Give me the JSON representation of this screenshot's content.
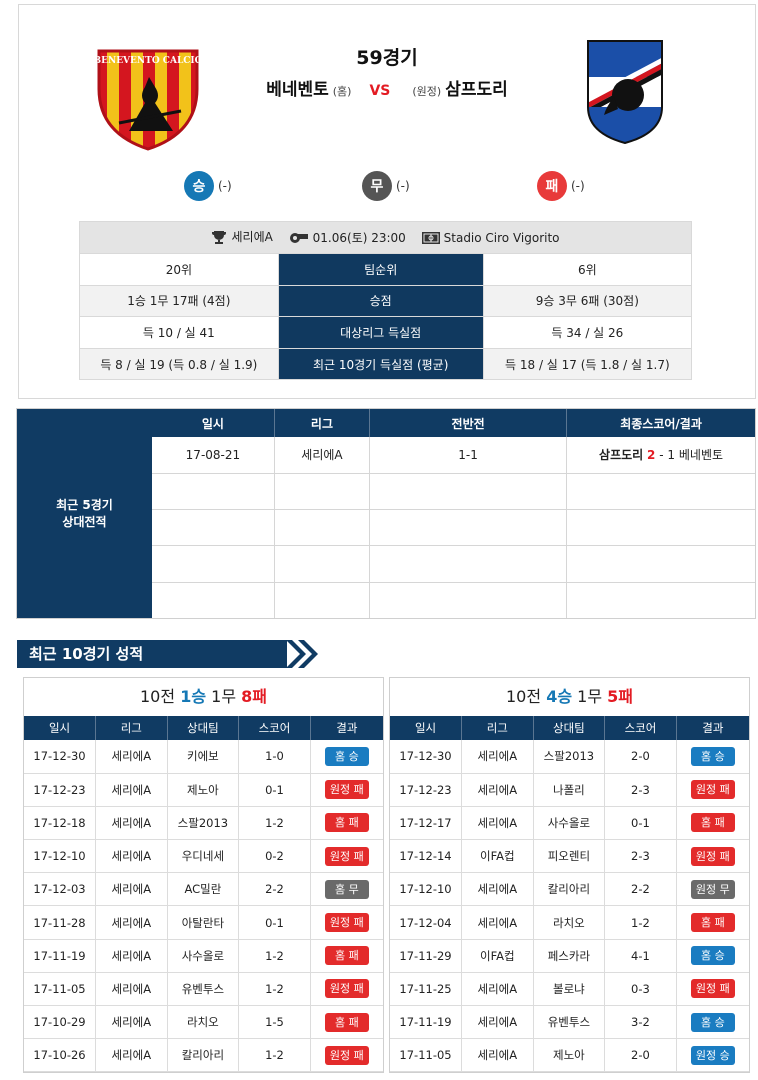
{
  "match": {
    "number": "59경기",
    "home_team": "베네벤토",
    "home_tag": "(홈)",
    "vs": "VS",
    "away_tag": "(원정)",
    "away_team": "삼프도리",
    "home_crest_text": "BENEVENTO CALCIO"
  },
  "prediction": {
    "win_label": "승",
    "win_count": "(-)",
    "draw_label": "무",
    "draw_count": "(-)",
    "loss_label": "패",
    "loss_count": "(-)"
  },
  "meta": {
    "league": "세리에A",
    "datetime": "01.06(토) 23:00",
    "stadium": "Stadio Ciro Vigorito"
  },
  "stats": [
    {
      "label": "팀순위",
      "home": "20위",
      "away": "6위"
    },
    {
      "label": "승점",
      "home": "1승 1무 17패 (4점)",
      "away": "9승 3무 6패 (30점)"
    },
    {
      "label": "대상리그 득실점",
      "home": "득 10 / 실 41",
      "away": "득 34 / 실 26"
    },
    {
      "label": "최근 10경기 득실점 (평균)",
      "home": "득 8 / 실 19 (득 0.8 / 실 1.9)",
      "away": "득 18 / 실 17 (득 1.8 / 실 1.7)"
    }
  ],
  "h2h": {
    "side_line1": "최근 5경기",
    "side_line2": "상대전적",
    "headers": [
      "일시",
      "리그",
      "전반전",
      "최종스코어/결과"
    ],
    "rows": [
      {
        "date": "17-08-21",
        "league": "세리에A",
        "half": "1-1",
        "team_a": "삼프도리",
        "score_a": "2",
        "sep": "-",
        "score_b": "1",
        "team_b": "베네벤토"
      }
    ]
  },
  "recent": {
    "title": "최근 10경기 성적",
    "headers": [
      "일시",
      "리그",
      "상대팀",
      "스코어",
      "결과"
    ],
    "home": {
      "prefix": "10전",
      "wins": "1승",
      "draws": "1무",
      "losses": "8패",
      "rows": [
        {
          "date": "17-12-30",
          "league": "세리에A",
          "opponent": "키에보",
          "score": "1-0",
          "result": "홈 승",
          "type": "win"
        },
        {
          "date": "17-12-23",
          "league": "세리에A",
          "opponent": "제노아",
          "score": "0-1",
          "result": "원정 패",
          "type": "loss"
        },
        {
          "date": "17-12-18",
          "league": "세리에A",
          "opponent": "스팔2013",
          "score": "1-2",
          "result": "홈 패",
          "type": "loss"
        },
        {
          "date": "17-12-10",
          "league": "세리에A",
          "opponent": "우디네세",
          "score": "0-2",
          "result": "원정 패",
          "type": "loss"
        },
        {
          "date": "17-12-03",
          "league": "세리에A",
          "opponent": "AC밀란",
          "score": "2-2",
          "result": "홈 무",
          "type": "draw"
        },
        {
          "date": "17-11-28",
          "league": "세리에A",
          "opponent": "아탈란타",
          "score": "0-1",
          "result": "원정 패",
          "type": "loss"
        },
        {
          "date": "17-11-19",
          "league": "세리에A",
          "opponent": "사수올로",
          "score": "1-2",
          "result": "홈 패",
          "type": "loss"
        },
        {
          "date": "17-11-05",
          "league": "세리에A",
          "opponent": "유벤투스",
          "score": "1-2",
          "result": "원정 패",
          "type": "loss"
        },
        {
          "date": "17-10-29",
          "league": "세리에A",
          "opponent": "라치오",
          "score": "1-5",
          "result": "홈 패",
          "type": "loss"
        },
        {
          "date": "17-10-26",
          "league": "세리에A",
          "opponent": "칼리아리",
          "score": "1-2",
          "result": "원정 패",
          "type": "loss"
        }
      ]
    },
    "away": {
      "prefix": "10전",
      "wins": "4승",
      "draws": "1무",
      "losses": "5패",
      "rows": [
        {
          "date": "17-12-30",
          "league": "세리에A",
          "opponent": "스팔2013",
          "score": "2-0",
          "result": "홈 승",
          "type": "win"
        },
        {
          "date": "17-12-23",
          "league": "세리에A",
          "opponent": "나폴리",
          "score": "2-3",
          "result": "원정 패",
          "type": "loss"
        },
        {
          "date": "17-12-17",
          "league": "세리에A",
          "opponent": "사수올로",
          "score": "0-1",
          "result": "홈 패",
          "type": "loss"
        },
        {
          "date": "17-12-14",
          "league": "이FA컵",
          "opponent": "피오렌티",
          "score": "2-3",
          "result": "원정 패",
          "type": "loss"
        },
        {
          "date": "17-12-10",
          "league": "세리에A",
          "opponent": "칼리아리",
          "score": "2-2",
          "result": "원정 무",
          "type": "draw"
        },
        {
          "date": "17-12-04",
          "league": "세리에A",
          "opponent": "라치오",
          "score": "1-2",
          "result": "홈 패",
          "type": "loss"
        },
        {
          "date": "17-11-29",
          "league": "이FA컵",
          "opponent": "페스카라",
          "score": "4-1",
          "result": "홈 승",
          "type": "win"
        },
        {
          "date": "17-11-25",
          "league": "세리에A",
          "opponent": "볼로냐",
          "score": "0-3",
          "result": "원정 패",
          "type": "loss"
        },
        {
          "date": "17-11-19",
          "league": "세리에A",
          "opponent": "유벤투스",
          "score": "3-2",
          "result": "홈 승",
          "type": "win"
        },
        {
          "date": "17-11-05",
          "league": "세리에A",
          "opponent": "제노아",
          "score": "2-0",
          "result": "원정 승",
          "type": "win"
        }
      ]
    }
  },
  "colors": {
    "navy": "#103b63",
    "win": "#1a7cc1",
    "loss": "#e32b2b",
    "draw": "#6a6a6a",
    "vs": "#e31b23"
  }
}
